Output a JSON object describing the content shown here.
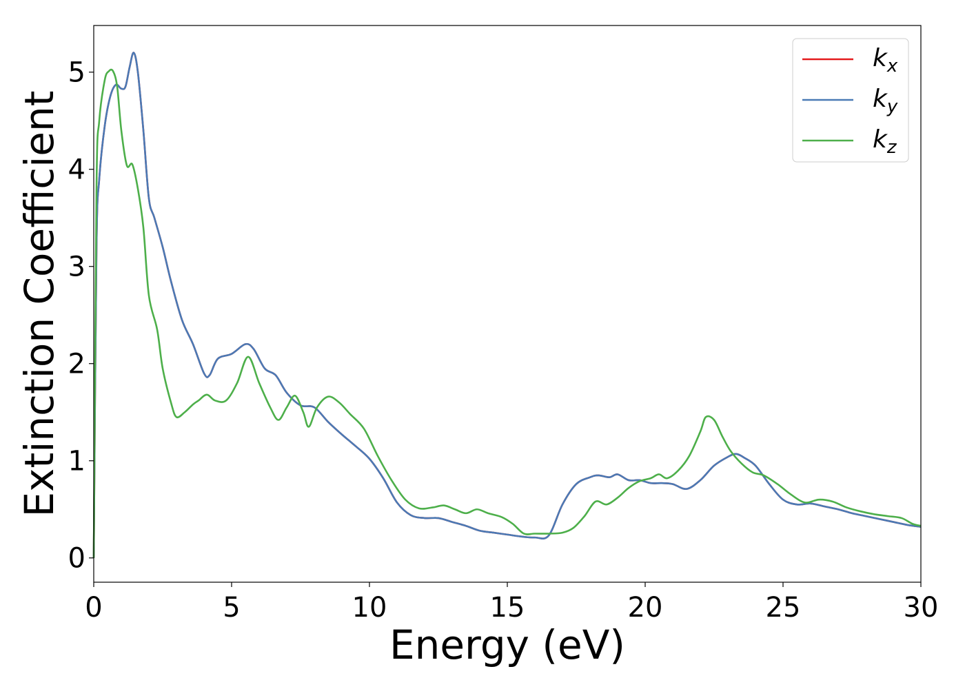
{
  "chart_data": {
    "type": "line",
    "xlabel": "Energy (eV)",
    "ylabel": "Extinction Coefficient",
    "xlim": [
      0,
      30
    ],
    "ylim": [
      -0.25,
      5.48
    ],
    "xticks": [
      0,
      5,
      10,
      15,
      20,
      25,
      30
    ],
    "yticks": [
      0,
      1,
      2,
      3,
      4,
      5
    ],
    "legend_position": "top-right",
    "grid": false,
    "series": [
      {
        "name": "k",
        "subscript": "x",
        "color": "#e41a1c",
        "x": [
          0,
          0.1,
          0.2,
          0.4,
          0.6,
          0.8,
          1.0,
          1.15,
          1.3,
          1.45,
          1.6,
          1.8,
          2.0,
          2.2,
          2.5,
          2.8,
          3.2,
          3.6,
          4.0,
          4.2,
          4.5,
          5.0,
          5.5,
          5.8,
          6.2,
          6.6,
          7.0,
          7.5,
          8.0,
          8.5,
          9.0,
          9.5,
          10.0,
          10.5,
          11.0,
          11.5,
          12.0,
          12.5,
          13.0,
          13.5,
          14.0,
          14.5,
          15.0,
          15.5,
          16.0,
          16.5,
          17.0,
          17.5,
          18.0,
          18.3,
          18.7,
          19.0,
          19.4,
          19.8,
          20.2,
          20.6,
          21.0,
          21.5,
          22.0,
          22.5,
          23.0,
          23.3,
          23.6,
          24.0,
          24.5,
          25.0,
          25.5,
          26.0,
          26.5,
          27.0,
          27.5,
          28.0,
          28.5,
          29.0,
          29.5,
          30.0
        ],
        "y": [
          0.0,
          3.2,
          3.9,
          4.45,
          4.75,
          4.87,
          4.83,
          4.85,
          5.05,
          5.2,
          5.0,
          4.4,
          3.7,
          3.5,
          3.2,
          2.85,
          2.45,
          2.2,
          1.9,
          1.88,
          2.05,
          2.1,
          2.2,
          2.15,
          1.95,
          1.88,
          1.7,
          1.57,
          1.55,
          1.4,
          1.27,
          1.15,
          1.02,
          0.82,
          0.57,
          0.44,
          0.41,
          0.41,
          0.37,
          0.33,
          0.28,
          0.26,
          0.24,
          0.22,
          0.21,
          0.23,
          0.55,
          0.76,
          0.83,
          0.85,
          0.83,
          0.86,
          0.8,
          0.8,
          0.77,
          0.77,
          0.76,
          0.71,
          0.8,
          0.95,
          1.04,
          1.07,
          1.03,
          0.95,
          0.76,
          0.6,
          0.55,
          0.56,
          0.53,
          0.5,
          0.46,
          0.43,
          0.4,
          0.37,
          0.34,
          0.32
        ]
      },
      {
        "name": "k",
        "subscript": "y",
        "color": "#4a7ab5",
        "x": [
          0,
          0.1,
          0.2,
          0.4,
          0.6,
          0.8,
          1.0,
          1.15,
          1.3,
          1.45,
          1.6,
          1.8,
          2.0,
          2.2,
          2.5,
          2.8,
          3.2,
          3.6,
          4.0,
          4.2,
          4.5,
          5.0,
          5.5,
          5.8,
          6.2,
          6.6,
          7.0,
          7.5,
          8.0,
          8.5,
          9.0,
          9.5,
          10.0,
          10.5,
          11.0,
          11.5,
          12.0,
          12.5,
          13.0,
          13.5,
          14.0,
          14.5,
          15.0,
          15.5,
          16.0,
          16.5,
          17.0,
          17.5,
          18.0,
          18.3,
          18.7,
          19.0,
          19.4,
          19.8,
          20.2,
          20.6,
          21.0,
          21.5,
          22.0,
          22.5,
          23.0,
          23.3,
          23.6,
          24.0,
          24.5,
          25.0,
          25.5,
          26.0,
          26.5,
          27.0,
          27.5,
          28.0,
          28.5,
          29.0,
          29.5,
          30.0
        ],
        "y": [
          0.0,
          3.2,
          3.9,
          4.45,
          4.75,
          4.87,
          4.83,
          4.85,
          5.05,
          5.2,
          5.0,
          4.4,
          3.7,
          3.5,
          3.2,
          2.85,
          2.45,
          2.2,
          1.9,
          1.88,
          2.05,
          2.1,
          2.2,
          2.15,
          1.95,
          1.88,
          1.7,
          1.57,
          1.55,
          1.4,
          1.27,
          1.15,
          1.02,
          0.82,
          0.57,
          0.44,
          0.41,
          0.41,
          0.37,
          0.33,
          0.28,
          0.26,
          0.24,
          0.22,
          0.21,
          0.23,
          0.55,
          0.76,
          0.83,
          0.85,
          0.83,
          0.86,
          0.8,
          0.8,
          0.77,
          0.77,
          0.76,
          0.71,
          0.8,
          0.95,
          1.04,
          1.07,
          1.03,
          0.95,
          0.76,
          0.6,
          0.55,
          0.56,
          0.53,
          0.5,
          0.46,
          0.43,
          0.4,
          0.37,
          0.34,
          0.32
        ]
      },
      {
        "name": "k",
        "subscript": "z",
        "color": "#4daf4a",
        "x": [
          0,
          0.1,
          0.2,
          0.4,
          0.55,
          0.7,
          0.85,
          1.0,
          1.2,
          1.4,
          1.6,
          1.8,
          2.0,
          2.3,
          2.5,
          2.8,
          3.0,
          3.3,
          3.6,
          3.8,
          4.1,
          4.4,
          4.8,
          5.2,
          5.6,
          6.0,
          6.4,
          6.7,
          7.0,
          7.3,
          7.6,
          7.8,
          8.1,
          8.5,
          8.9,
          9.3,
          9.8,
          10.3,
          10.8,
          11.3,
          11.8,
          12.3,
          12.7,
          13.1,
          13.5,
          13.9,
          14.3,
          14.8,
          15.2,
          15.6,
          16.0,
          16.5,
          17.0,
          17.4,
          17.8,
          18.2,
          18.6,
          19.0,
          19.4,
          19.8,
          20.2,
          20.5,
          20.8,
          21.2,
          21.6,
          22.0,
          22.2,
          22.5,
          22.8,
          23.1,
          23.5,
          23.9,
          24.3,
          24.8,
          25.3,
          25.8,
          26.3,
          26.8,
          27.3,
          27.8,
          28.3,
          28.8,
          29.3,
          29.7,
          30.0
        ],
        "y": [
          0.0,
          3.8,
          4.5,
          4.92,
          5.01,
          5.01,
          4.85,
          4.4,
          4.04,
          4.05,
          3.8,
          3.4,
          2.7,
          2.35,
          1.95,
          1.6,
          1.45,
          1.5,
          1.58,
          1.62,
          1.68,
          1.62,
          1.62,
          1.8,
          2.07,
          1.8,
          1.55,
          1.42,
          1.55,
          1.67,
          1.5,
          1.35,
          1.55,
          1.66,
          1.6,
          1.48,
          1.33,
          1.05,
          0.8,
          0.6,
          0.51,
          0.52,
          0.54,
          0.5,
          0.46,
          0.5,
          0.46,
          0.42,
          0.35,
          0.25,
          0.25,
          0.25,
          0.26,
          0.31,
          0.43,
          0.58,
          0.55,
          0.62,
          0.72,
          0.79,
          0.82,
          0.86,
          0.82,
          0.9,
          1.05,
          1.3,
          1.45,
          1.42,
          1.25,
          1.1,
          0.97,
          0.88,
          0.85,
          0.76,
          0.65,
          0.57,
          0.6,
          0.58,
          0.52,
          0.48,
          0.45,
          0.43,
          0.41,
          0.35,
          0.33
        ]
      }
    ]
  }
}
